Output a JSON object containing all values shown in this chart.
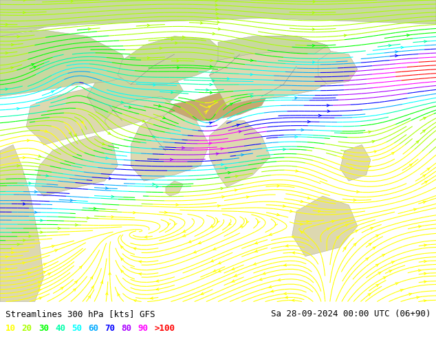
{
  "title_left": "Streamlines 300 hPa [kts] GFS",
  "title_right": "Sa 28-09-2024 00:00 UTC (06+90)",
  "legend_values": [
    "10",
    "20",
    "30",
    "40",
    "50",
    "60",
    "70",
    "80",
    "90",
    ">100"
  ],
  "legend_colors": [
    "#ffff00",
    "#aaff00",
    "#00ff00",
    "#00ffaa",
    "#00ffff",
    "#00aaff",
    "#0000ff",
    "#aa00ff",
    "#ff00ff",
    "#ff0000"
  ],
  "background_color": "#ffffff",
  "map_bg_ocean": "#b8dcea",
  "map_bg_land_low": "#ddd8b0",
  "map_bg_land_high": "#c8a870",
  "map_bg_land_green": "#c8d8a0",
  "text_color": "#000000",
  "title_fontsize": 9.0,
  "legend_fontsize": 9.0,
  "fig_width": 6.34,
  "fig_height": 4.9,
  "dpi": 100
}
